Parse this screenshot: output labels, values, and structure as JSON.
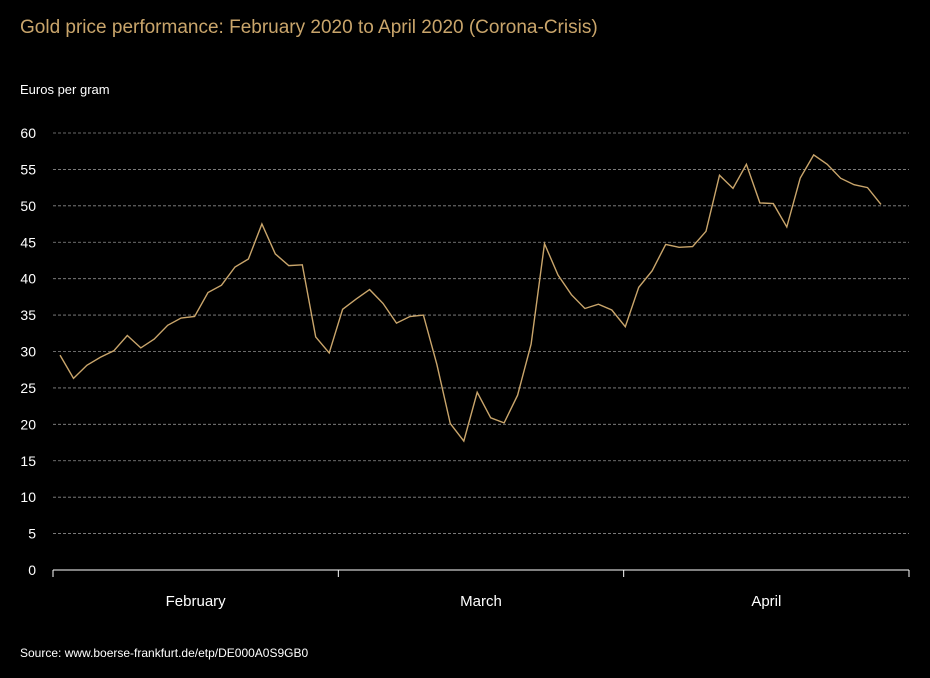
{
  "title": "Gold price performance: February 2020 to April 2020 (Corona-Crisis)",
  "source": "Source: www.boerse-frankfurt.de/etp/DE000A0S9GB0",
  "colors": {
    "background": "#000000",
    "line": "#c9a56b",
    "title": "#c9a56b",
    "text": "#ffffff",
    "grid": "#8c8c8c"
  },
  "chart_data": {
    "type": "line",
    "title": "Gold price performance: February 2020 to April 2020 (Corona-Crisis)",
    "ylabel": "Euros per gram",
    "xlabel": "",
    "ylim": [
      0,
      60
    ],
    "yticks": [
      0,
      5,
      10,
      15,
      20,
      25,
      30,
      35,
      40,
      45,
      50,
      55,
      60
    ],
    "month_labels": [
      "February",
      "March",
      "April"
    ],
    "grid": "horizontal dashed",
    "series": [
      {
        "values": [
          29.5,
          26.3,
          28.1,
          29.2,
          30.1,
          32.2,
          30.5,
          31.7,
          33.6,
          34.6,
          34.8,
          38.1,
          39.1,
          41.6,
          42.7,
          47.5,
          43.4,
          41.8,
          41.9,
          32.0,
          29.8,
          35.8,
          37.2,
          38.5,
          36.6,
          33.9,
          34.8,
          35.0,
          28.2,
          20.1,
          17.7,
          24.4,
          20.9,
          20.2,
          24.0,
          31.0,
          44.8,
          40.5,
          37.8,
          35.9,
          36.5,
          35.7,
          33.4,
          38.8,
          41.1,
          44.7,
          44.3,
          44.4,
          46.5,
          54.2,
          52.4,
          55.7,
          50.4,
          50.3,
          47.1,
          53.8,
          57.0,
          55.7,
          53.8,
          52.9,
          52.5,
          50.2
        ]
      }
    ]
  }
}
